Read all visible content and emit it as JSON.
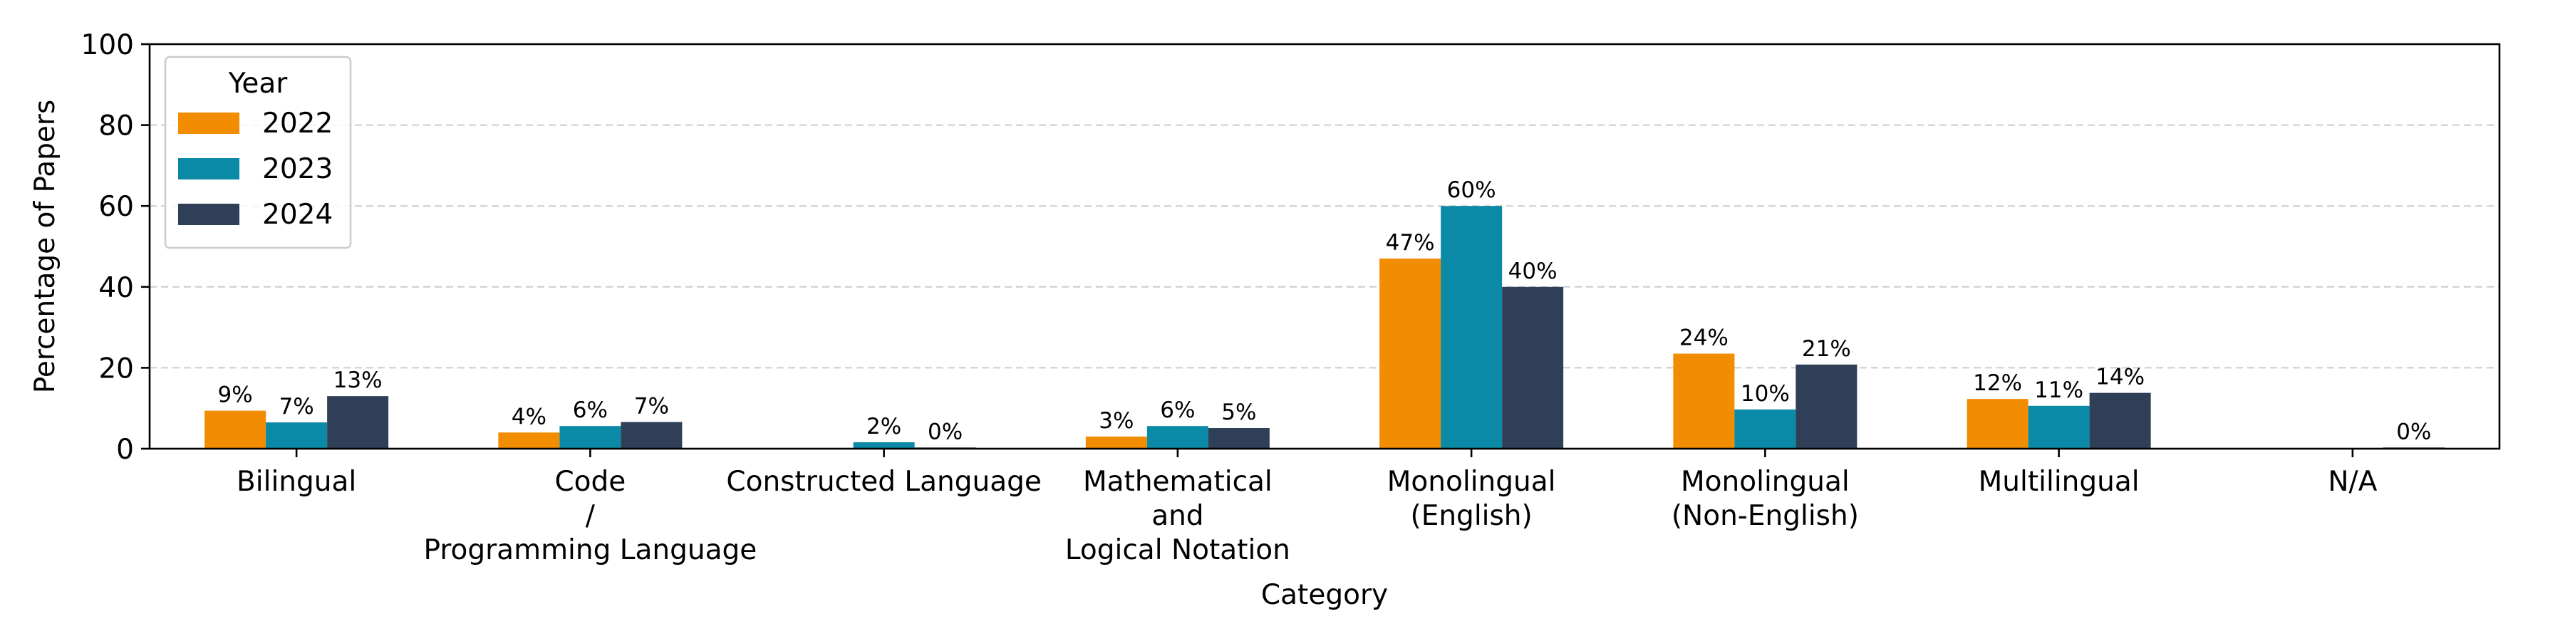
{
  "chart_data": {
    "type": "bar",
    "title": "",
    "xlabel": "Category",
    "ylabel": "Percentage of Papers",
    "ylim": [
      0,
      100
    ],
    "yticks": [
      0,
      20,
      40,
      60,
      80,
      100
    ],
    "grid": "horizontal-dashed",
    "legend": {
      "title": "Year",
      "placement": "top-left"
    },
    "categories": [
      [
        "Bilingual"
      ],
      [
        "Code",
        "/",
        "Programming Language"
      ],
      [
        "Constructed Language"
      ],
      [
        "Mathematical",
        "and",
        "Logical Notation"
      ],
      [
        "Monolingual",
        "(English)"
      ],
      [
        "Monolingual",
        "(Non-English)"
      ],
      [
        "Multilingual"
      ],
      [
        "N/A"
      ]
    ],
    "series": [
      {
        "name": "2022",
        "color": "#F28C00",
        "values": [
          9.4,
          4.0,
          null,
          3.0,
          47.0,
          23.5,
          12.3,
          null
        ],
        "labels": [
          "9%",
          "4%",
          "",
          "3%",
          "47%",
          "24%",
          "12%",
          ""
        ]
      },
      {
        "name": "2023",
        "color": "#0A8AA6",
        "values": [
          6.5,
          5.6,
          1.6,
          5.6,
          60.0,
          9.7,
          10.6,
          null
        ],
        "labels": [
          "7%",
          "6%",
          "2%",
          "6%",
          "60%",
          "10%",
          "11%",
          ""
        ]
      },
      {
        "name": "2024",
        "color": "#2E3F57",
        "values": [
          13.0,
          6.6,
          0.3,
          5.1,
          40.0,
          20.8,
          13.8,
          0.3
        ],
        "labels": [
          "13%",
          "7%",
          "0%",
          "5%",
          "40%",
          "21%",
          "14%",
          "0%"
        ]
      }
    ]
  }
}
